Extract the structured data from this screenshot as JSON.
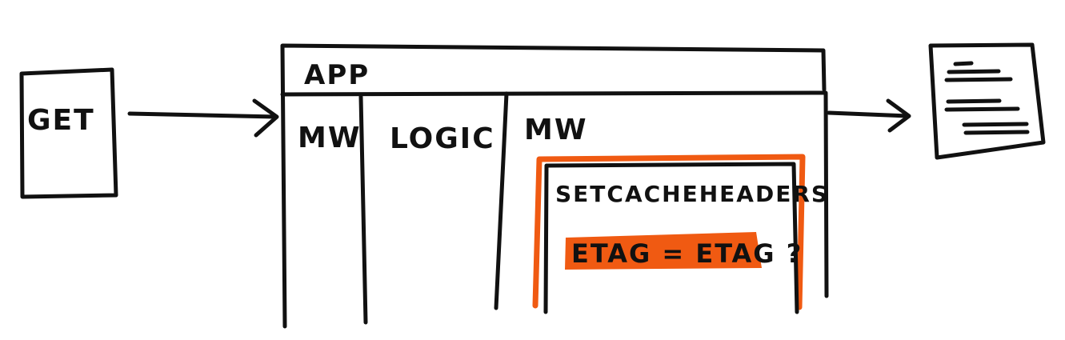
{
  "diagram": {
    "request_label": "GET",
    "app_label": "APP",
    "columns": {
      "first_middleware": "MW",
      "logic": "LOGIC",
      "second_middleware": "MW"
    },
    "middleware_box": {
      "title": "SETCACHEHEADERS",
      "check": "ETAG = ETAG ?"
    },
    "response": {
      "icon": "document-icon"
    }
  },
  "colors": {
    "ink": "#111111",
    "highlight": "#f05a12",
    "background": "#ffffff"
  }
}
